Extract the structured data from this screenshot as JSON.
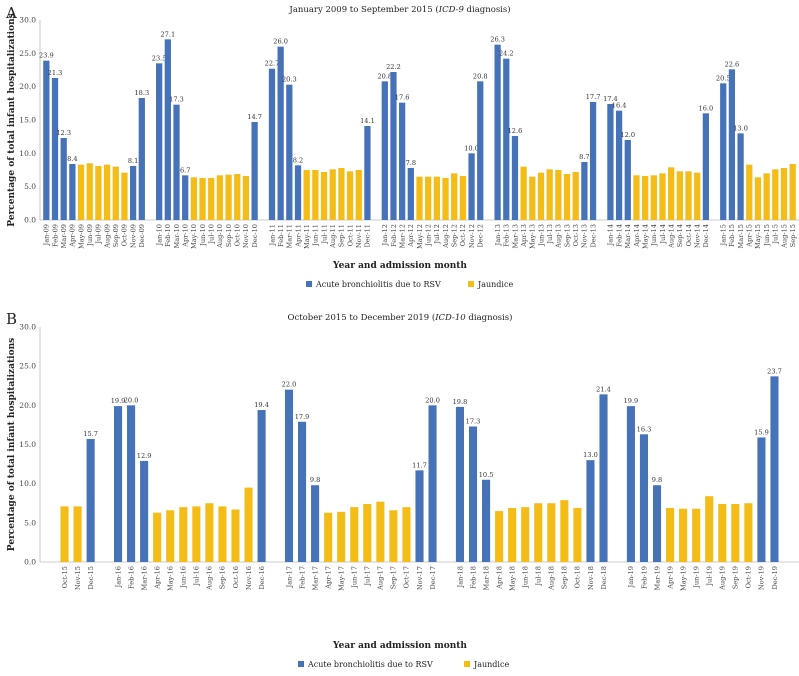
{
  "chart_data": [
    {
      "type": "bar",
      "panel": "A",
      "title": "January 2009 to September 2015 (",
      "title_italic": "ICD-9",
      "title_suffix": " diagnosis)",
      "xlabel": "Year and admission month",
      "ylabel": "Percentage of total infant hospitalizations",
      "ylim": [
        0,
        30
      ],
      "yticks": [
        "0.0",
        "5.0",
        "10.0",
        "15.0",
        "20.0",
        "25.0",
        "30.0"
      ],
      "legend": [
        "Acute bronchiolitis due to RSV",
        "Jaundice"
      ],
      "colors": {
        "rsv": "#4672b8",
        "jaundice": "#f4bc17"
      },
      "groups": [
        {
          "bars": [
            {
              "label": "Jan-09",
              "series": "rsv",
              "value": 23.9,
              "show": "23.9"
            },
            {
              "label": "Feb-09",
              "series": "rsv",
              "value": 21.3,
              "show": "21.3"
            },
            {
              "label": "Mar-09",
              "series": "rsv",
              "value": 12.3,
              "show": "12.3"
            },
            {
              "label": "Apr-09",
              "series": "rsv",
              "value": 8.4,
              "show": "8.4"
            },
            {
              "label": "May-09",
              "series": "jaundice",
              "value": 8.3
            },
            {
              "label": "Jun-09",
              "series": "jaundice",
              "value": 8.5
            },
            {
              "label": "Jul-09",
              "series": "jaundice",
              "value": 8.1
            },
            {
              "label": "Aug-09",
              "series": "jaundice",
              "value": 8.3
            },
            {
              "label": "Sep-09",
              "series": "jaundice",
              "value": 8.0
            },
            {
              "label": "Oct-09",
              "series": "jaundice",
              "value": 7.1
            },
            {
              "label": "Nov-09",
              "series": "rsv",
              "value": 8.1,
              "show": "8.1"
            },
            {
              "label": "Dec-09",
              "series": "rsv",
              "value": 18.3,
              "show": "18.3"
            }
          ]
        },
        {
          "bars": [
            {
              "label": "Jan-10",
              "series": "rsv",
              "value": 23.5,
              "show": "23.5"
            },
            {
              "label": "Feb-10",
              "series": "rsv",
              "value": 27.1,
              "show": "27.1"
            },
            {
              "label": "Mar-10",
              "series": "rsv",
              "value": 17.3,
              "show": "17.3"
            },
            {
              "label": "Apr-10",
              "series": "rsv",
              "value": 6.7,
              "show": "6.7"
            },
            {
              "label": "May-10",
              "series": "jaundice",
              "value": 6.4
            },
            {
              "label": "Jun-10",
              "series": "jaundice",
              "value": 6.3
            },
            {
              "label": "Jul-10",
              "series": "jaundice",
              "value": 6.3
            },
            {
              "label": "Aug-10",
              "series": "jaundice",
              "value": 6.7
            },
            {
              "label": "Sep-10",
              "series": "jaundice",
              "value": 6.8
            },
            {
              "label": "Oct-10",
              "series": "jaundice",
              "value": 6.9
            },
            {
              "label": "Nov-10",
              "series": "jaundice",
              "value": 6.6
            },
            {
              "label": "Dec-10",
              "series": "rsv",
              "value": 14.7,
              "show": "14.7"
            }
          ]
        },
        {
          "bars": [
            {
              "label": "Jan-11",
              "series": "rsv",
              "value": 22.7,
              "show": "22.7"
            },
            {
              "label": "Feb-11",
              "series": "rsv",
              "value": 26.0,
              "show": "26.0"
            },
            {
              "label": "Mar-11",
              "series": "rsv",
              "value": 20.3,
              "show": "20.3"
            },
            {
              "label": "Apr-11",
              "series": "rsv",
              "value": 8.2,
              "show": "8.2"
            },
            {
              "label": "May-11",
              "series": "jaundice",
              "value": 7.5
            },
            {
              "label": "Jun-11",
              "series": "jaundice",
              "value": 7.5
            },
            {
              "label": "Jul-11",
              "series": "jaundice",
              "value": 7.2
            },
            {
              "label": "Aug-11",
              "series": "jaundice",
              "value": 7.6
            },
            {
              "label": "Sep-11",
              "series": "jaundice",
              "value": 7.8
            },
            {
              "label": "Oct-11",
              "series": "jaundice",
              "value": 7.3
            },
            {
              "label": "Nov-11",
              "series": "jaundice",
              "value": 7.5
            },
            {
              "label": "Dec-11",
              "series": "rsv",
              "value": 14.1,
              "show": "14.1"
            }
          ]
        },
        {
          "bars": [
            {
              "label": "Jan-12",
              "series": "rsv",
              "value": 20.8,
              "show": "20.8"
            },
            {
              "label": "Feb-12",
              "series": "rsv",
              "value": 22.2,
              "show": "22.2"
            },
            {
              "label": "Mar-12",
              "series": "rsv",
              "value": 17.6,
              "show": "17.6"
            },
            {
              "label": "Apr-12",
              "series": "rsv",
              "value": 7.8,
              "show": "7.8"
            },
            {
              "label": "May-12",
              "series": "jaundice",
              "value": 6.5
            },
            {
              "label": "Jun-12",
              "series": "jaundice",
              "value": 6.5
            },
            {
              "label": "Jul-12",
              "series": "jaundice",
              "value": 6.5
            },
            {
              "label": "Aug-12",
              "series": "jaundice",
              "value": 6.3
            },
            {
              "label": "Sep-12",
              "series": "jaundice",
              "value": 7.0
            },
            {
              "label": "Oct-12",
              "series": "jaundice",
              "value": 6.6
            },
            {
              "label": "Nov-12",
              "series": "rsv",
              "value": 10.0,
              "show": "10.0"
            },
            {
              "label": "Dec-12",
              "series": "rsv",
              "value": 20.8,
              "show": "20.8"
            }
          ]
        },
        {
          "bars": [
            {
              "label": "Jan-13",
              "series": "rsv",
              "value": 26.3,
              "show": "26.3"
            },
            {
              "label": "Feb-13",
              "series": "rsv",
              "value": 24.2,
              "show": "24.2"
            },
            {
              "label": "Mar-13",
              "series": "rsv",
              "value": 12.6,
              "show": "12.6"
            },
            {
              "label": "Apr-13",
              "series": "jaundice",
              "value": 8.0
            },
            {
              "label": "May-13",
              "series": "jaundice",
              "value": 6.5
            },
            {
              "label": "Jun-13",
              "series": "jaundice",
              "value": 7.1
            },
            {
              "label": "Jul-13",
              "series": "jaundice",
              "value": 7.6
            },
            {
              "label": "Aug-13",
              "series": "jaundice",
              "value": 7.5
            },
            {
              "label": "Sep-13",
              "series": "jaundice",
              "value": 6.9
            },
            {
              "label": "Oct-13",
              "series": "jaundice",
              "value": 7.2
            },
            {
              "label": "Nov-13",
              "series": "rsv",
              "value": 8.7,
              "show": "8.7"
            },
            {
              "label": "Dec-13",
              "series": "rsv",
              "value": 17.7,
              "show": "17.7"
            }
          ]
        },
        {
          "bars": [
            {
              "label": "Jan-14",
              "series": "rsv",
              "value": 17.4,
              "show": "17.4"
            },
            {
              "label": "Feb-14",
              "series": "rsv",
              "value": 16.4,
              "show": "16.4"
            },
            {
              "label": "Mar-14",
              "series": "rsv",
              "value": 12.0,
              "show": "12.0"
            },
            {
              "label": "Apr-14",
              "series": "jaundice",
              "value": 6.7
            },
            {
              "label": "May-14",
              "series": "jaundice",
              "value": 6.6
            },
            {
              "label": "Jun-14",
              "series": "jaundice",
              "value": 6.7
            },
            {
              "label": "Jul-14",
              "series": "jaundice",
              "value": 7.0
            },
            {
              "label": "Aug-14",
              "series": "jaundice",
              "value": 7.9
            },
            {
              "label": "Sep-14",
              "series": "jaundice",
              "value": 7.3
            },
            {
              "label": "Oct-14",
              "series": "jaundice",
              "value": 7.3
            },
            {
              "label": "Nov-14",
              "series": "jaundice",
              "value": 7.1
            },
            {
              "label": "Dec-14",
              "series": "rsv",
              "value": 16.0,
              "show": "16.0"
            }
          ]
        },
        {
          "bars": [
            {
              "label": "Jan-15",
              "series": "rsv",
              "value": 20.5,
              "show": "20.5"
            },
            {
              "label": "Feb-15",
              "series": "rsv",
              "value": 22.6,
              "show": "22.6"
            },
            {
              "label": "Mar-15",
              "series": "rsv",
              "value": 13.0,
              "show": "13.0"
            },
            {
              "label": "Apr-15",
              "series": "jaundice",
              "value": 8.3
            },
            {
              "label": "May-15",
              "series": "jaundice",
              "value": 6.4
            },
            {
              "label": "Jun-15",
              "series": "jaundice",
              "value": 7.0
            },
            {
              "label": "Jul-15",
              "series": "jaundice",
              "value": 7.6
            },
            {
              "label": "Aug-15",
              "series": "jaundice",
              "value": 7.8
            },
            {
              "label": "Sep-15",
              "series": "jaundice",
              "value": 8.4
            }
          ]
        }
      ]
    },
    {
      "type": "bar",
      "panel": "B",
      "title": "October 2015 to December 2019 (",
      "title_italic": "ICD-10",
      "title_suffix": " diagnosis)",
      "xlabel": "Year and admission month",
      "ylabel": "Percentage of total infant hospitalizations",
      "ylim": [
        0,
        30
      ],
      "yticks": [
        "0.0",
        "5.0",
        "10.0",
        "15.0",
        "20.0",
        "25.0",
        "30.0"
      ],
      "legend": [
        "Acute bronchiolitis due to RSV",
        "Jaundice"
      ],
      "colors": {
        "rsv": "#4672b8",
        "jaundice": "#f4bc17"
      },
      "groups": [
        {
          "bars": [
            {
              "label": "Oct-15",
              "series": "jaundice",
              "value": 7.1
            },
            {
              "label": "Nov-15",
              "series": "jaundice",
              "value": 7.1
            },
            {
              "label": "Dec-15",
              "series": "rsv",
              "value": 15.7,
              "show": "15.7"
            }
          ]
        },
        {
          "bars": [
            {
              "label": "Jan-16",
              "series": "rsv",
              "value": 19.9,
              "show": "19.9"
            },
            {
              "label": "Feb-16",
              "series": "rsv",
              "value": 20.0,
              "show": "20.0"
            },
            {
              "label": "Mar-16",
              "series": "rsv",
              "value": 12.9,
              "show": "12.9"
            },
            {
              "label": "Apr-16",
              "series": "jaundice",
              "value": 6.3
            },
            {
              "label": "May-16",
              "series": "jaundice",
              "value": 6.6
            },
            {
              "label": "Jun-16",
              "series": "jaundice",
              "value": 7.0
            },
            {
              "label": "Jul-16",
              "series": "jaundice",
              "value": 7.1
            },
            {
              "label": "Aug-16",
              "series": "jaundice",
              "value": 7.5
            },
            {
              "label": "Sep-16",
              "series": "jaundice",
              "value": 7.1
            },
            {
              "label": "Oct-16",
              "series": "jaundice",
              "value": 6.7
            },
            {
              "label": "Nov-16",
              "series": "jaundice",
              "value": 9.5
            },
            {
              "label": "Dec-16",
              "series": "rsv",
              "value": 19.4,
              "show": "19.4"
            }
          ]
        },
        {
          "bars": [
            {
              "label": "Jan-17",
              "series": "rsv",
              "value": 22.0,
              "show": "22.0"
            },
            {
              "label": "Feb-17",
              "series": "rsv",
              "value": 17.9,
              "show": "17.9"
            },
            {
              "label": "Mar-17",
              "series": "rsv",
              "value": 9.8,
              "show": "9.8"
            },
            {
              "label": "Apr-17",
              "series": "jaundice",
              "value": 6.3
            },
            {
              "label": "May-17",
              "series": "jaundice",
              "value": 6.4
            },
            {
              "label": "Jun-17",
              "series": "jaundice",
              "value": 7.0
            },
            {
              "label": "Jul-17",
              "series": "jaundice",
              "value": 7.4
            },
            {
              "label": "Aug-17",
              "series": "jaundice",
              "value": 7.7
            },
            {
              "label": "Sep-17",
              "series": "jaundice",
              "value": 6.6
            },
            {
              "label": "Oct-17",
              "series": "jaundice",
              "value": 7.0
            },
            {
              "label": "Nov-17",
              "series": "rsv",
              "value": 11.7,
              "show": "11.7"
            },
            {
              "label": "Dec-17",
              "series": "rsv",
              "value": 20.0,
              "show": "20.0"
            }
          ]
        },
        {
          "bars": [
            {
              "label": "Jan-18",
              "series": "rsv",
              "value": 19.8,
              "show": "19.8"
            },
            {
              "label": "Feb-18",
              "series": "rsv",
              "value": 17.3,
              "show": "17.3"
            },
            {
              "label": "Mar-18",
              "series": "rsv",
              "value": 10.5,
              "show": "10.5"
            },
            {
              "label": "Apr-18",
              "series": "jaundice",
              "value": 6.5
            },
            {
              "label": "May-18",
              "series": "jaundice",
              "value": 6.9
            },
            {
              "label": "Jun-18",
              "series": "jaundice",
              "value": 7.0
            },
            {
              "label": "Jul-18",
              "series": "jaundice",
              "value": 7.5
            },
            {
              "label": "Aug-18",
              "series": "jaundice",
              "value": 7.5
            },
            {
              "label": "Sep-18",
              "series": "jaundice",
              "value": 7.9
            },
            {
              "label": "Oct-18",
              "series": "jaundice",
              "value": 6.9
            },
            {
              "label": "Nov-18",
              "series": "rsv",
              "value": 13.0,
              "show": "13.0"
            },
            {
              "label": "Dec-18",
              "series": "rsv",
              "value": 21.4,
              "show": "21.4"
            }
          ]
        },
        {
          "bars": [
            {
              "label": "Jan-19",
              "series": "rsv",
              "value": 19.9,
              "show": "19.9"
            },
            {
              "label": "Feb-19",
              "series": "rsv",
              "value": 16.3,
              "show": "16.3"
            },
            {
              "label": "Mar-19",
              "series": "rsv",
              "value": 9.8,
              "show": "9.8"
            },
            {
              "label": "Apr-19",
              "series": "jaundice",
              "value": 6.9
            },
            {
              "label": "May-19",
              "series": "jaundice",
              "value": 6.8
            },
            {
              "label": "Jun-19",
              "series": "jaundice",
              "value": 6.8
            },
            {
              "label": "Jul-19",
              "series": "jaundice",
              "value": 8.4
            },
            {
              "label": "Aug-19",
              "series": "jaundice",
              "value": 7.4
            },
            {
              "label": "Sep-19",
              "series": "jaundice",
              "value": 7.4
            },
            {
              "label": "Oct-19",
              "series": "jaundice",
              "value": 7.5
            },
            {
              "label": "Nov-19",
              "series": "rsv",
              "value": 15.9,
              "show": "15.9"
            },
            {
              "label": "Dec-19",
              "series": "rsv",
              "value": 23.7,
              "show": "23.7"
            }
          ]
        }
      ]
    }
  ]
}
